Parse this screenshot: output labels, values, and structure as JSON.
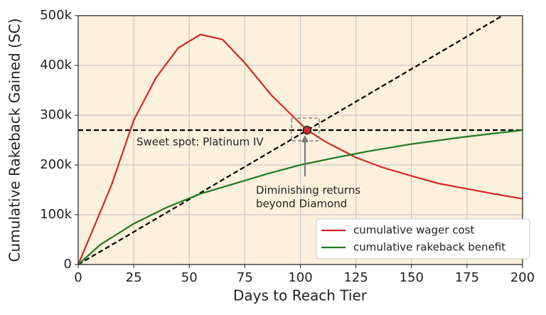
{
  "chart_data": {
    "type": "line",
    "xlabel": "Days to Reach Tier",
    "ylabel": "Cumulative Rakeback Gained (SC)",
    "xlim": [
      0,
      200
    ],
    "ylim": [
      0,
      500000
    ],
    "xticks": [
      0,
      25,
      50,
      75,
      100,
      125,
      150,
      175,
      200
    ],
    "yticks": [
      0,
      {
        "value": 100000,
        "label": "100k"
      },
      {
        "value": 200000,
        "label": "200k"
      },
      {
        "value": 300000,
        "label": "300k"
      },
      {
        "value": 400000,
        "label": "400k"
      },
      {
        "value": 500000,
        "label": "500k"
      }
    ],
    "grid": true,
    "legend": "lower right",
    "series": [
      {
        "name": "cumulative wager cost",
        "color": "#d62728",
        "x": [
          0,
          8,
          15,
          25,
          35,
          45,
          55,
          65,
          75,
          87,
          95,
          103,
          112,
          125,
          137,
          150,
          162,
          175,
          187,
          200
        ],
        "values": [
          0,
          85000,
          160000,
          290000,
          375000,
          435000,
          462000,
          452000,
          405000,
          340000,
          305000,
          270000,
          245000,
          215000,
          195000,
          178000,
          163000,
          152000,
          142000,
          132000
        ]
      },
      {
        "name": "cumulative rakeback benefit",
        "color": "#1f7a1f",
        "x": [
          0,
          10,
          25,
          40,
          55,
          70,
          85,
          100,
          115,
          130,
          150,
          175,
          200
        ],
        "values": [
          0,
          40000,
          82000,
          115000,
          142000,
          162000,
          182000,
          200000,
          214000,
          227000,
          242000,
          257000,
          270000
        ]
      }
    ],
    "ref_lines": [
      {
        "color": "#000000",
        "dashed": true,
        "x": [
          0,
          191
        ],
        "values": [
          0,
          500000
        ]
      },
      {
        "color": "#000000",
        "dashed": true,
        "x": [
          0,
          200
        ],
        "values": [
          270000,
          270000
        ]
      }
    ],
    "highlight": {
      "x": 103,
      "value": 270000,
      "color": "#d62728"
    },
    "annotations": [
      {
        "lines": [
          "Sweet spot: Platinum IV"
        ]
      },
      {
        "lines": [
          "Diminishing returns",
          "beyond Diamond"
        ]
      }
    ]
  }
}
